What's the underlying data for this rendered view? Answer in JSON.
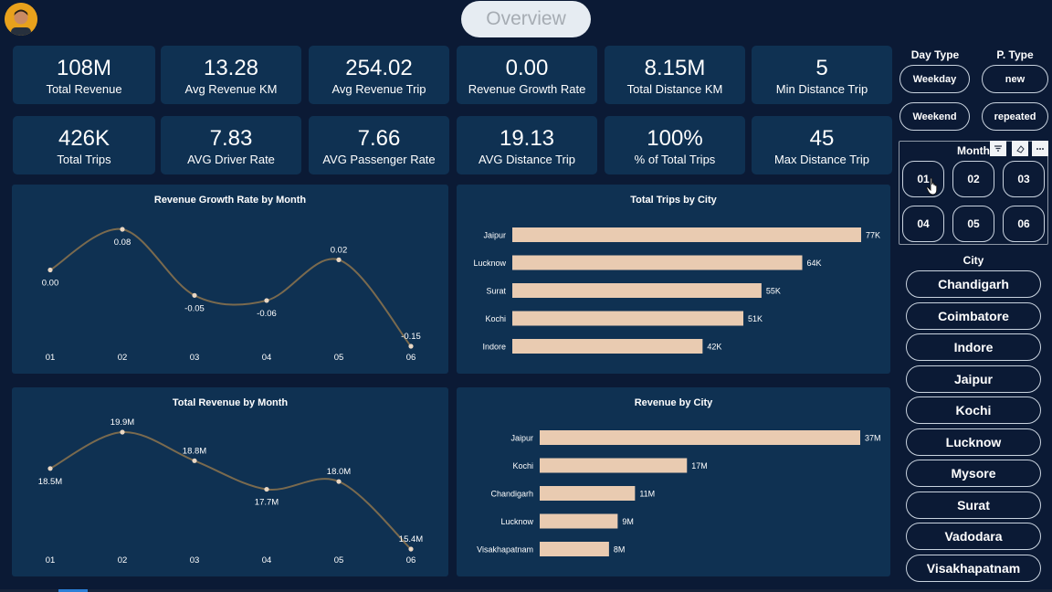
{
  "header": {
    "title": "Overview"
  },
  "kpis": [
    {
      "value": "108M",
      "label": "Total Revenue"
    },
    {
      "value": "13.28",
      "label": "Avg Revenue KM"
    },
    {
      "value": "254.02",
      "label": "Avg Revenue Trip"
    },
    {
      "value": "0.00",
      "label": "Revenue Growth Rate"
    },
    {
      "value": "8.15M",
      "label": "Total Distance KM"
    },
    {
      "value": "5",
      "label": "Min Distance Trip"
    },
    {
      "value": "426K",
      "label": "Total Trips"
    },
    {
      "value": "7.83",
      "label": "AVG Driver Rate"
    },
    {
      "value": "7.66",
      "label": "AVG Passenger Rate"
    },
    {
      "value": "19.13",
      "label": "AVG Distance Trip"
    },
    {
      "value": "100%",
      "label": "% of Total Trips"
    },
    {
      "value": "45",
      "label": "Max Distance Trip"
    }
  ],
  "slicers": {
    "day_type": {
      "title": "Day Type",
      "options": [
        "Weekday",
        "Weekend"
      ]
    },
    "p_type": {
      "title": "P. Type",
      "options": [
        "new",
        "repeated"
      ]
    },
    "month": {
      "title": "Month",
      "options": [
        "01",
        "02",
        "03",
        "04",
        "05",
        "06"
      ],
      "icons": [
        "filter-icon",
        "eraser-icon",
        "more-options-icon"
      ]
    },
    "city": {
      "title": "City",
      "options": [
        "Chandigarh",
        "Coimbatore",
        "Indore",
        "Jaipur",
        "Kochi",
        "Lucknow",
        "Mysore",
        "Surat",
        "Vadodara",
        "Visakhapatnam"
      ]
    }
  },
  "colors": {
    "background": "#0b1a35",
    "panel": "#0f3152",
    "line": "#7a6a4e",
    "bar": "#e9cbb1",
    "point": "#ead7c3"
  },
  "chart_data": [
    {
      "type": "line",
      "title": "Revenue Growth Rate by Month",
      "categories": [
        "01",
        "02",
        "03",
        "04",
        "05",
        "06"
      ],
      "values": [
        0.0,
        0.08,
        -0.05,
        -0.06,
        0.02,
        -0.15
      ],
      "labels": [
        "0.00",
        "0.08",
        "-0.05",
        "-0.06",
        "0.02",
        "-0.15"
      ],
      "ylim": [
        -0.15,
        0.08
      ]
    },
    {
      "type": "bar",
      "orientation": "horizontal",
      "title": "Total Trips by City",
      "categories": [
        "Jaipur",
        "Lucknow",
        "Surat",
        "Kochi",
        "Indore"
      ],
      "values": [
        77,
        64,
        55,
        51,
        42
      ],
      "labels": [
        "77K",
        "64K",
        "55K",
        "51K",
        "42K"
      ],
      "unit": "K"
    },
    {
      "type": "line",
      "title": "Total Revenue by Month",
      "categories": [
        "01",
        "02",
        "03",
        "04",
        "05",
        "06"
      ],
      "values": [
        18.5,
        19.9,
        18.8,
        17.7,
        18.0,
        15.4
      ],
      "labels": [
        "18.5M",
        "19.9M",
        "18.8M",
        "17.7M",
        "18.0M",
        "15.4M"
      ],
      "ylim": [
        15.4,
        19.9
      ],
      "unit": "M"
    },
    {
      "type": "bar",
      "orientation": "horizontal",
      "title": "Revenue by City",
      "categories": [
        "Jaipur",
        "Kochi",
        "Chandigarh",
        "Lucknow",
        "Visakhapatnam"
      ],
      "values": [
        37,
        17,
        11,
        9,
        8
      ],
      "labels": [
        "37M",
        "17M",
        "11M",
        "9M",
        "8M"
      ],
      "unit": "M"
    }
  ]
}
